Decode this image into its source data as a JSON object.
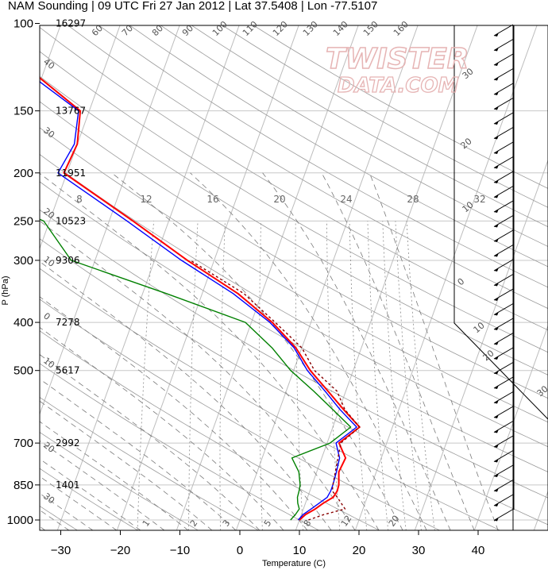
{
  "chart_data": {
    "type": "line",
    "title": "NAM Sounding | 09 UTC Fri 27 Jan 2012 | Lat 37.5408 | Lon -77.5107",
    "xlabel": "Temperature (C)",
    "ylabel": "P (hPa)",
    "xlim": [
      -34,
      50
    ],
    "ylim": [
      1050,
      100
    ],
    "y_scale": "log",
    "skew": "Skew-T",
    "x_ticks": [
      -30,
      -20,
      -10,
      0,
      10,
      20,
      30,
      40
    ],
    "pressure_ticks": [
      100,
      150,
      200,
      250,
      300,
      400,
      500,
      700,
      850,
      1000
    ],
    "heights": [
      {
        "p": 100,
        "label": "16297"
      },
      {
        "p": 150,
        "label": "13767"
      },
      {
        "p": 200,
        "label": "11951"
      },
      {
        "p": 250,
        "label": "10523"
      },
      {
        "p": 300,
        "label": "9306"
      },
      {
        "p": 400,
        "label": "7278"
      },
      {
        "p": 500,
        "label": "5617"
      },
      {
        "p": 700,
        "label": "2992"
      },
      {
        "p": 850,
        "label": "1401"
      }
    ],
    "series": [
      {
        "key": "temperature",
        "color": "#ff0000",
        "style": "solid",
        "points": [
          [
            1000,
            10
          ],
          [
            975,
            10.7
          ],
          [
            950,
            12
          ],
          [
            925,
            13
          ],
          [
            900,
            14.3
          ],
          [
            875,
            14.6
          ],
          [
            850,
            14.5
          ],
          [
            800,
            13.7
          ],
          [
            750,
            14
          ],
          [
            700,
            12
          ],
          [
            650,
            14.5
          ],
          [
            600,
            10.8
          ],
          [
            550,
            7
          ],
          [
            500,
            2.8
          ],
          [
            450,
            -1
          ],
          [
            400,
            -6.5
          ],
          [
            350,
            -14
          ],
          [
            300,
            -24.5
          ],
          [
            250,
            -36
          ],
          [
            200,
            -50.5
          ],
          [
            175,
            -50
          ],
          [
            150,
            -51.5
          ],
          [
            125,
            -62
          ],
          [
            100,
            -77
          ]
        ]
      },
      {
        "key": "virtual_temperature",
        "color": "#0000ff",
        "style": "solid",
        "points": [
          [
            1000,
            9.8
          ],
          [
            975,
            10.3
          ],
          [
            950,
            11.3
          ],
          [
            925,
            12.3
          ],
          [
            900,
            13.3
          ],
          [
            875,
            13.5
          ],
          [
            850,
            13.5
          ],
          [
            800,
            13.3
          ],
          [
            750,
            13
          ],
          [
            700,
            11.5
          ],
          [
            650,
            14
          ],
          [
            600,
            10.2
          ],
          [
            550,
            6.5
          ],
          [
            500,
            2.3
          ],
          [
            450,
            -1.3
          ],
          [
            400,
            -6.9
          ],
          [
            350,
            -14.8
          ],
          [
            300,
            -25.5
          ],
          [
            250,
            -37
          ],
          [
            200,
            -51.5
          ],
          [
            175,
            -50.5
          ],
          [
            150,
            -51.8
          ],
          [
            125,
            -63
          ],
          [
            100,
            -77.5
          ]
        ]
      },
      {
        "key": "dewpoint",
        "color": "#008000",
        "style": "solid",
        "points": [
          [
            1000,
            8.5
          ],
          [
            975,
            9
          ],
          [
            950,
            9.3
          ],
          [
            925,
            8.7
          ],
          [
            900,
            8.3
          ],
          [
            875,
            8.2
          ],
          [
            850,
            8
          ],
          [
            800,
            7
          ],
          [
            750,
            5
          ],
          [
            700,
            10.5
          ],
          [
            650,
            13
          ],
          [
            600,
            9
          ],
          [
            550,
            4.6
          ],
          [
            500,
            -0.5
          ],
          [
            450,
            -5
          ],
          [
            400,
            -11
          ],
          [
            350,
            -26
          ],
          [
            300,
            -44
          ],
          [
            250,
            -51
          ],
          [
            200,
            -73
          ],
          [
            175,
            -70
          ],
          [
            150,
            -76
          ],
          [
            125,
            -90
          ],
          [
            100,
            -106
          ]
        ]
      },
      {
        "key": "parcel",
        "color": "#880000",
        "style": "dotted",
        "points": [
          [
            1000,
            11.5
          ],
          [
            975,
            13.8
          ],
          [
            950,
            17
          ],
          [
            925,
            16
          ],
          [
            900,
            15
          ],
          [
            875,
            13.8
          ],
          [
            850,
            13.5
          ],
          [
            700,
            12.3
          ],
          [
            650,
            14.5
          ],
          [
            600,
            11
          ],
          [
            550,
            8.5
          ],
          [
            500,
            3.5
          ],
          [
            450,
            0
          ],
          [
            400,
            -6
          ],
          [
            350,
            -13
          ],
          [
            300,
            -24
          ]
        ]
      }
    ],
    "isotherm_labels": [
      {
        "t": -110,
        "p": 120,
        "label": "40"
      },
      {
        "t": -100,
        "p": 165,
        "label": "30"
      },
      {
        "t": -90,
        "p": 240,
        "label": "20"
      },
      {
        "t": -80,
        "p": 300,
        "label": "10"
      },
      {
        "t": -70,
        "p": 390,
        "label": "0"
      },
      {
        "t": -60,
        "p": 480,
        "label": "10"
      },
      {
        "t": -50,
        "p": 710,
        "label": "20"
      },
      {
        "t": -40,
        "p": 900,
        "label": "30"
      }
    ],
    "dry_adiabat_labels": [
      "60",
      "70",
      "80",
      "90",
      "100",
      "110",
      "120",
      "130",
      "140",
      "150",
      "160"
    ],
    "mixing_ratio_labels": [
      "8",
      "12",
      "16",
      "20",
      "24",
      "28",
      "32"
    ],
    "mixing_ratio_bottom_labels": [
      "1",
      "2",
      "3",
      "5",
      "8",
      "12",
      "20"
    ],
    "moist_adiabat_right_labels": [
      "30",
      "20",
      "10",
      "0",
      "10",
      "20",
      "30"
    ],
    "watermark": {
      "line1": "TWISTER",
      "line2": "DATA.COM"
    },
    "grid": true
  }
}
